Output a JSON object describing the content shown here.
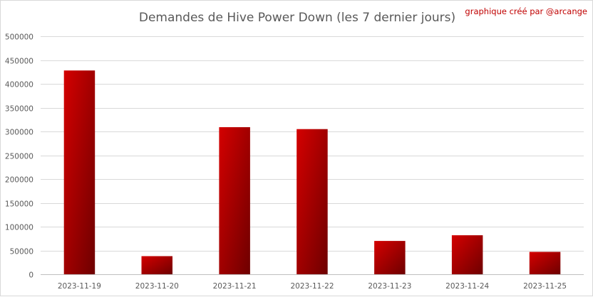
{
  "chart_data": {
    "type": "bar",
    "title": "Demandes de Hive Power Down (les 7 dernier jours)",
    "credit": "graphique créé par @arcange",
    "categories": [
      "2023-11-19",
      "2023-11-20",
      "2023-11-21",
      "2023-11-22",
      "2023-11-23",
      "2023-11-24",
      "2023-11-25"
    ],
    "values": [
      428000,
      38000,
      309000,
      305000,
      70000,
      82000,
      47000
    ],
    "xlabel": "",
    "ylabel": "",
    "ylim": [
      0,
      500000
    ],
    "yticks": [
      0,
      50000,
      100000,
      150000,
      200000,
      250000,
      300000,
      350000,
      400000,
      450000,
      500000
    ],
    "grid": true,
    "legend": "none",
    "colors": {
      "bar_light": "#d40000",
      "bar_dark": "#6e0000",
      "grid": "#d9d9d9",
      "text": "#595959",
      "credit": "#c00000"
    }
  }
}
